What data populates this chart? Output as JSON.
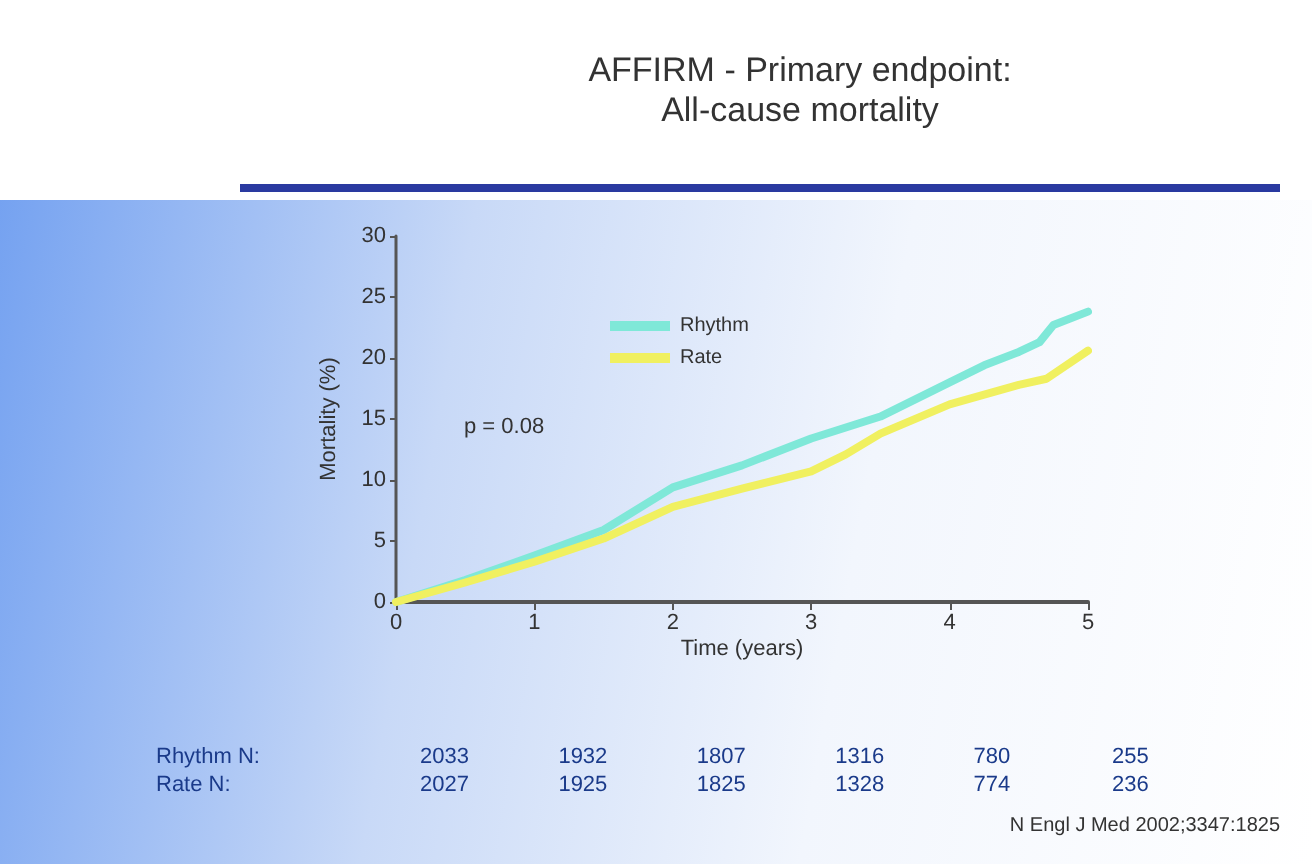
{
  "chart_data": {
    "type": "line",
    "title": "AFFIRM - Primary endpoint:\nAll-cause mortality",
    "xlabel": "Time (years)",
    "ylabel": "Mortality (%)",
    "xlim": [
      0,
      5
    ],
    "xticks": [
      0,
      1,
      2,
      3,
      4,
      5
    ],
    "ylim": [
      0,
      30
    ],
    "yticks": [
      0,
      5,
      10,
      15,
      20,
      25,
      30
    ],
    "grid": false,
    "legend": "top",
    "marker": "none",
    "line_style": "solid",
    "series": [
      {
        "name": "Rhythm",
        "color": "#7fe8d8",
        "x": [
          0,
          0.5,
          1,
          1.5,
          2,
          2.5,
          3,
          3.5,
          4,
          4.25,
          4.5,
          4.65,
          4.75,
          5
        ],
        "values": [
          0,
          1.8,
          3.8,
          5.9,
          9.4,
          11.2,
          13.4,
          15.2,
          18.0,
          19.4,
          20.5,
          21.3,
          22.7,
          23.8
        ]
      },
      {
        "name": "Rate",
        "color": "#f0f060",
        "x": [
          0,
          0.5,
          1,
          1.5,
          2,
          2.5,
          3,
          3.25,
          3.5,
          4,
          4.5,
          4.7,
          5
        ],
        "values": [
          0,
          1.6,
          3.3,
          5.2,
          7.8,
          9.3,
          10.7,
          12.1,
          13.8,
          16.2,
          17.8,
          18.3,
          20.6
        ]
      }
    ],
    "annotations": [
      "p = 0.08",
      "Rhythm N:",
      "2033",
      "1932",
      "1807",
      "1316",
      "780",
      "255",
      "Rate N:",
      "2027",
      "1925",
      "1825",
      "1328",
      "774",
      "236",
      "N Engl J Med 2002;3347:1825"
    ]
  }
}
